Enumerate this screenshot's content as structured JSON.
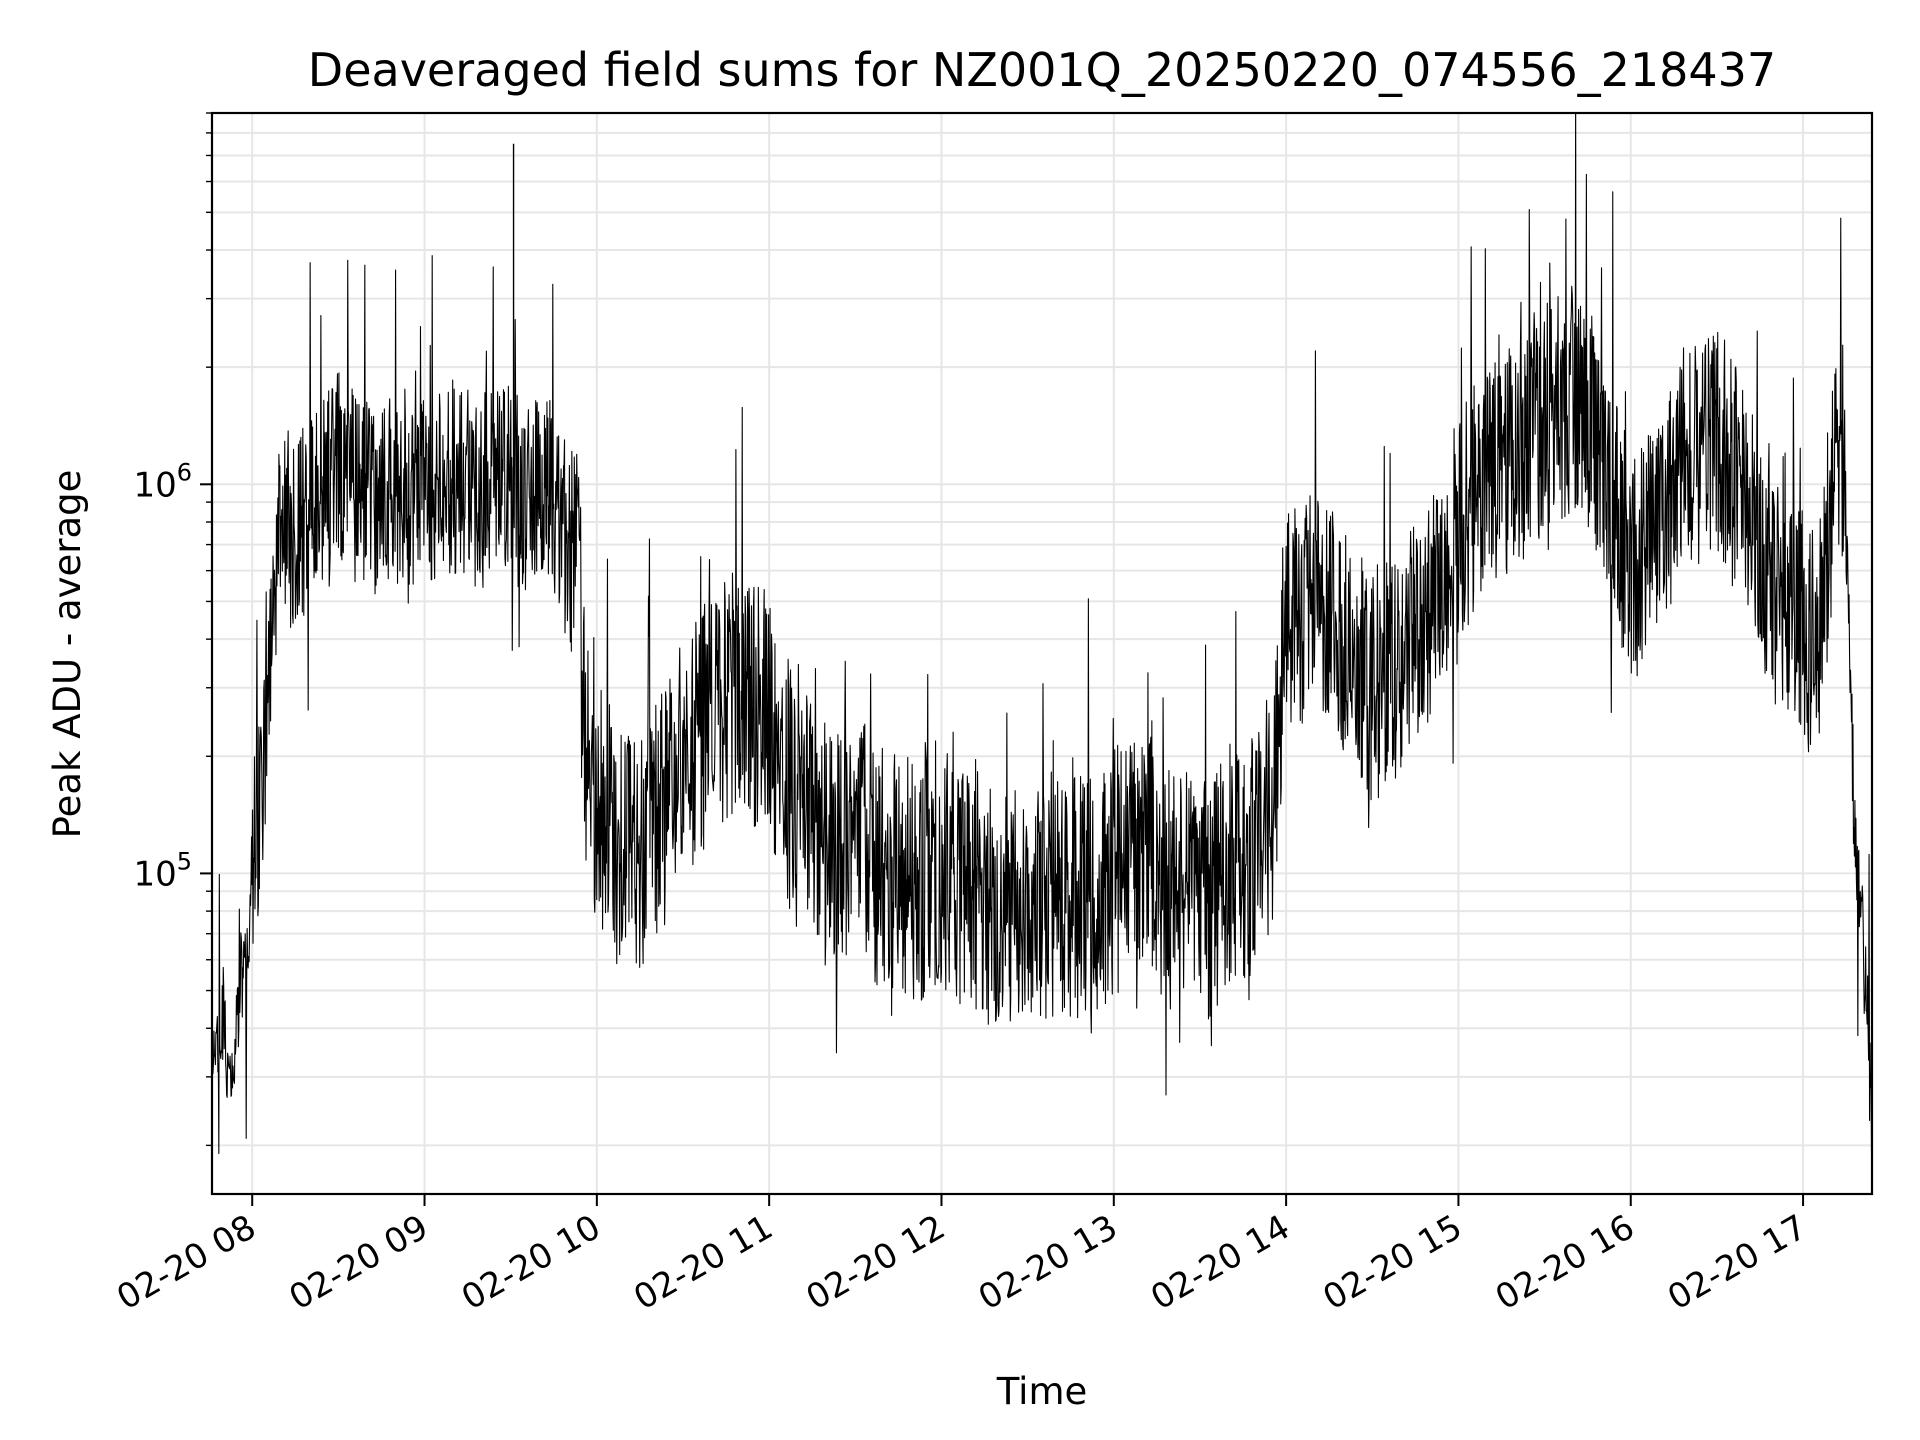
{
  "chart_data": {
    "type": "line",
    "title": "Deaveraged field sums for NZ001Q_20250220_074556_218437",
    "xlabel": "Time",
    "ylabel": "Peak ADU - average",
    "yscale": "log",
    "ylim": [
      15000,
      9000000
    ],
    "xlim": [
      "2025-02-20 07:46",
      "2025-02-20 17:24"
    ],
    "grid": true,
    "line_color": "#000000",
    "x_ticks": [
      "02-20 08",
      "02-20 09",
      "02-20 10",
      "02-20 11",
      "02-20 12",
      "02-20 13",
      "02-20 14",
      "02-20 15",
      "02-20 16",
      "02-20 17"
    ],
    "y_ticks": [
      {
        "base": "10",
        "exp": "5",
        "value": 100000
      },
      {
        "base": "10",
        "exp": "6",
        "value": 1000000
      }
    ],
    "series": [
      {
        "x": [
          "2025-02-20 07:46",
          "2025-02-20 07:48",
          "2025-02-20 07:50",
          "2025-02-20 07:52",
          "2025-02-20 07:54",
          "2025-02-20 07:56",
          "2025-02-20 07:58",
          "2025-02-20 08:00",
          "2025-02-20 08:02",
          "2025-02-20 08:04",
          "2025-02-20 08:06",
          "2025-02-20 08:10",
          "2025-02-20 08:15",
          "2025-02-20 08:20",
          "2025-02-20 08:25",
          "2025-02-20 08:30",
          "2025-02-20 08:35",
          "2025-02-20 08:40",
          "2025-02-20 08:45",
          "2025-02-20 08:50",
          "2025-02-20 08:55",
          "2025-02-20 09:00",
          "2025-02-20 09:05",
          "2025-02-20 09:10",
          "2025-02-20 09:15",
          "2025-02-20 09:20",
          "2025-02-20 09:25",
          "2025-02-20 09:30",
          "2025-02-20 09:35",
          "2025-02-20 09:40",
          "2025-02-20 09:45",
          "2025-02-20 09:50",
          "2025-02-20 09:53",
          "2025-02-20 09:56",
          "2025-02-20 10:00",
          "2025-02-20 10:10",
          "2025-02-20 10:20",
          "2025-02-20 10:30",
          "2025-02-20 10:40",
          "2025-02-20 10:50",
          "2025-02-20 11:00",
          "2025-02-20 11:10",
          "2025-02-20 11:20",
          "2025-02-20 11:30",
          "2025-02-20 11:40",
          "2025-02-20 11:50",
          "2025-02-20 12:00",
          "2025-02-20 12:10",
          "2025-02-20 12:20",
          "2025-02-20 12:30",
          "2025-02-20 12:40",
          "2025-02-20 12:50",
          "2025-02-20 13:00",
          "2025-02-20 13:10",
          "2025-02-20 13:20",
          "2025-02-20 13:30",
          "2025-02-20 13:40",
          "2025-02-20 13:50",
          "2025-02-20 13:55",
          "2025-02-20 14:00",
          "2025-02-20 14:10",
          "2025-02-20 14:20",
          "2025-02-20 14:30",
          "2025-02-20 14:40",
          "2025-02-20 14:50",
          "2025-02-20 15:00",
          "2025-02-20 15:10",
          "2025-02-20 15:20",
          "2025-02-20 15:30",
          "2025-02-20 15:40",
          "2025-02-20 15:50",
          "2025-02-20 16:00",
          "2025-02-20 16:10",
          "2025-02-20 16:20",
          "2025-02-20 16:30",
          "2025-02-20 16:40",
          "2025-02-20 16:50",
          "2025-02-20 17:00",
          "2025-02-20 17:05",
          "2025-02-20 17:10",
          "2025-02-20 17:12",
          "2025-02-20 17:14",
          "2025-02-20 17:16",
          "2025-02-20 17:18",
          "2025-02-20 17:20",
          "2025-02-20 17:22",
          "2025-02-20 17:24"
        ],
        "y": [
          40000,
          33000,
          45000,
          26000,
          38000,
          55000,
          60000,
          100000,
          130000,
          200000,
          350000,
          900000,
          700000,
          850000,
          1000000,
          1100000,
          1000000,
          950000,
          900000,
          1000000,
          850000,
          950000,
          1000000,
          1050000,
          1000000,
          950000,
          1100000,
          1000000,
          900000,
          1050000,
          850000,
          700000,
          800000,
          200000,
          150000,
          110000,
          130000,
          200000,
          250000,
          300000,
          250000,
          140000,
          120000,
          130000,
          100000,
          95000,
          100000,
          90000,
          75000,
          85000,
          90000,
          85000,
          100000,
          120000,
          90000,
          85000,
          95000,
          110000,
          150000,
          450000,
          500000,
          400000,
          300000,
          350000,
          450000,
          800000,
          1000000,
          1200000,
          1500000,
          1700000,
          1200000,
          600000,
          800000,
          1200000,
          1300000,
          900000,
          500000,
          450000,
          350000,
          900000,
          1100000,
          1200000,
          400000,
          120000,
          80000,
          50000,
          22000
        ]
      }
    ]
  }
}
